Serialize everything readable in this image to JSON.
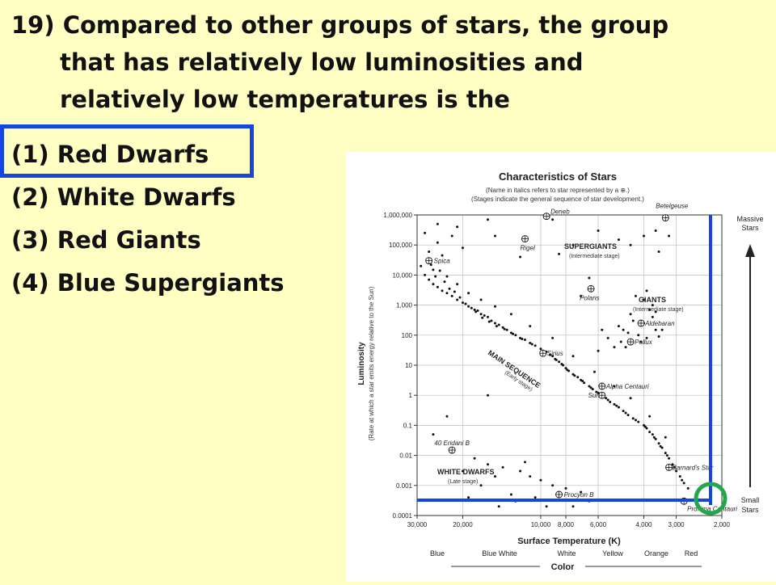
{
  "question": {
    "lines": [
      "19) Compared to other groups of stars, the group",
      "that has relatively low luminosities and",
      "relatively low temperatures is the"
    ]
  },
  "options": [
    "(1) Red Dwarfs",
    "(2) White Dwarfs",
    "(3) Red Giants",
    "(4) Blue Supergiants"
  ],
  "selected_option": 0,
  "colors": {
    "background": "#ffffc4",
    "answer_box": "#1646e0",
    "guide_lines": "#1646e0",
    "highlight_circle": "#22a84a"
  },
  "chart": {
    "title": "Characteristics of Stars",
    "subtitle_1": "(Name in italics refers to star represented by a ⊕.)",
    "subtitle_2": "(Stages indicate the general sequence of star development.)",
    "ylabel_main": "Luminosity",
    "ylabel_sub": "(Rate at which a star emits energy relative to the Sun)",
    "xlabel": "Surface Temperature (K)",
    "color_label": "Color",
    "color_bands": [
      "Blue",
      "Blue White",
      "White",
      "Yellow",
      "Orange",
      "Red"
    ],
    "massive_label": [
      "Massive",
      "Stars"
    ],
    "small_label": [
      "Small",
      "Stars"
    ],
    "regions": {
      "supergiants": "SUPERGIANTS",
      "supergiants_stage": "(Intermediate stage)",
      "giants": "GIANTS",
      "giants_stage": "(Intermediate stage)",
      "main_sequence": "MAIN SEQUENCE",
      "main_sequence_stage": "(Early stage)",
      "white_dwarfs": "WHITE DWARFS",
      "white_dwarfs_stage": "(Late stage)"
    }
  },
  "chart_data": {
    "type": "scatter",
    "title": "Characteristics of Stars",
    "xlabel": "Surface Temperature (K)",
    "ylabel": "Luminosity",
    "x_scale": "log",
    "y_scale": "log",
    "x_reversed": true,
    "xlim": [
      30000,
      2000
    ],
    "ylim": [
      0.0001,
      1000000
    ],
    "grid": true,
    "x_ticks": [
      {
        "value": 30000,
        "label": "30,000"
      },
      {
        "value": 20000,
        "label": "20,000"
      },
      {
        "value": 10000,
        "label": "10,000"
      },
      {
        "value": 8000,
        "label": "8,000"
      },
      {
        "value": 6000,
        "label": "6,000"
      },
      {
        "value": 4000,
        "label": "4,000"
      },
      {
        "value": 3000,
        "label": "3,000"
      },
      {
        "value": 2000,
        "label": "2,000"
      }
    ],
    "y_ticks": [
      {
        "value": 1000000,
        "label": "1,000,000"
      },
      {
        "value": 100000,
        "label": "100,000"
      },
      {
        "value": 10000,
        "label": "10,000"
      },
      {
        "value": 1000,
        "label": "1,000"
      },
      {
        "value": 100,
        "label": "100"
      },
      {
        "value": 10,
        "label": "10"
      },
      {
        "value": 1,
        "label": "1"
      },
      {
        "value": 0.1,
        "label": "0.1"
      },
      {
        "value": 0.01,
        "label": "0.01"
      },
      {
        "value": 0.001,
        "label": "0.001"
      },
      {
        "value": 0.0001,
        "label": "0.0001"
      }
    ],
    "named_stars": [
      {
        "name": "Deneb",
        "temp": 9500,
        "lum": 900000
      },
      {
        "name": "Betelgeuse",
        "temp": 3300,
        "lum": 800000
      },
      {
        "name": "Rigel",
        "temp": 11500,
        "lum": 160000
      },
      {
        "name": "Spica",
        "temp": 27000,
        "lum": 30000
      },
      {
        "name": "Polaris",
        "temp": 6400,
        "lum": 3500
      },
      {
        "name": "Aldebaran",
        "temp": 4100,
        "lum": 250
      },
      {
        "name": "Pollux",
        "temp": 4500,
        "lum": 60
      },
      {
        "name": "Sirius",
        "temp": 9800,
        "lum": 25
      },
      {
        "name": "Alpha Centauri",
        "temp": 5800,
        "lum": 2
      },
      {
        "name": "Sun",
        "temp": 5800,
        "lum": 1
      },
      {
        "name": "40 Eridani B",
        "temp": 22000,
        "lum": 0.015
      },
      {
        "name": "Barnard's Star",
        "temp": 3200,
        "lum": 0.004
      },
      {
        "name": "Procyon B",
        "temp": 8500,
        "lum": 0.0005
      },
      {
        "name": "Proxima Centauri",
        "temp": 2800,
        "lum": 0.0003
      }
    ],
    "field_stars": [
      [
        28000,
        250000
      ],
      [
        25000,
        120000
      ],
      [
        22000,
        200000
      ],
      [
        20000,
        80000
      ],
      [
        27000,
        60000
      ],
      [
        24000,
        45000
      ],
      [
        21000,
        400000
      ],
      [
        29000,
        20000
      ],
      [
        28000,
        10000
      ],
      [
        27000,
        7000
      ],
      [
        26000,
        5000
      ],
      [
        25000,
        4000
      ],
      [
        24000,
        3000
      ],
      [
        23000,
        2500
      ],
      [
        22000,
        2000
      ],
      [
        21000,
        1500
      ],
      [
        20000,
        1200
      ],
      [
        19000,
        900
      ],
      [
        18000,
        700
      ],
      [
        17500,
        650
      ],
      [
        17000,
        500
      ],
      [
        16500,
        450
      ],
      [
        16000,
        400
      ],
      [
        15500,
        300
      ],
      [
        15000,
        250
      ],
      [
        14500,
        220
      ],
      [
        14000,
        180
      ],
      [
        13500,
        150
      ],
      [
        13000,
        120
      ],
      [
        12500,
        100
      ],
      [
        12000,
        80
      ],
      [
        11500,
        70
      ],
      [
        11000,
        55
      ],
      [
        10500,
        45
      ],
      [
        10000,
        35
      ],
      [
        9500,
        28
      ],
      [
        9000,
        20
      ],
      [
        8800,
        16
      ],
      [
        8500,
        13
      ],
      [
        8200,
        10
      ],
      [
        8000,
        8
      ],
      [
        7800,
        6.5
      ],
      [
        7500,
        5
      ],
      [
        7200,
        4
      ],
      [
        7000,
        3.2
      ],
      [
        6800,
        2.6
      ],
      [
        6500,
        2
      ],
      [
        6300,
        1.6
      ],
      [
        6100,
        1.3
      ],
      [
        5900,
        1.1
      ],
      [
        5600,
        0.8
      ],
      [
        5400,
        0.6
      ],
      [
        5200,
        0.5
      ],
      [
        5000,
        0.4
      ],
      [
        4800,
        0.3
      ],
      [
        4600,
        0.22
      ],
      [
        4400,
        0.17
      ],
      [
        4200,
        0.13
      ],
      [
        4000,
        0.1
      ],
      [
        3900,
        0.08
      ],
      [
        3800,
        0.06
      ],
      [
        3700,
        0.05
      ],
      [
        3600,
        0.035
      ],
      [
        3500,
        0.025
      ],
      [
        3400,
        0.018
      ],
      [
        3300,
        0.012
      ],
      [
        3200,
        0.008
      ],
      [
        3100,
        0.005
      ],
      [
        3000,
        0.003
      ],
      [
        2900,
        0.002
      ],
      [
        2800,
        0.0012
      ],
      [
        2700,
        0.0008
      ],
      [
        26000,
        15000
      ],
      [
        25500,
        9000
      ],
      [
        23500,
        6000
      ],
      [
        22500,
        3500
      ],
      [
        21500,
        2800
      ],
      [
        20500,
        1800
      ],
      [
        19500,
        1100
      ],
      [
        18500,
        800
      ],
      [
        17800,
        600
      ],
      [
        16800,
        380
      ],
      [
        15800,
        280
      ],
      [
        14800,
        200
      ],
      [
        13800,
        160
      ],
      [
        12800,
        110
      ],
      [
        11800,
        75
      ],
      [
        10800,
        50
      ],
      [
        9800,
        30
      ],
      [
        9200,
        22
      ],
      [
        8700,
        15
      ],
      [
        8300,
        11
      ],
      [
        7900,
        7
      ],
      [
        7400,
        4.5
      ],
      [
        6900,
        3
      ],
      [
        6400,
        1.8
      ],
      [
        6000,
        1.2
      ],
      [
        5500,
        0.7
      ],
      [
        5100,
        0.45
      ],
      [
        4700,
        0.26
      ],
      [
        4300,
        0.15
      ],
      [
        3950,
        0.09
      ],
      [
        3650,
        0.04
      ],
      [
        3450,
        0.02
      ],
      [
        3250,
        0.01
      ],
      [
        3050,
        0.004
      ],
      [
        2850,
        0.0015
      ],
      [
        27500,
        30000
      ],
      [
        26500,
        22000
      ],
      [
        24500,
        14000
      ],
      [
        23000,
        9000
      ],
      [
        21000,
        5000
      ],
      [
        19000,
        2500
      ],
      [
        17000,
        1500
      ],
      [
        15000,
        900
      ],
      [
        13000,
        500
      ],
      [
        11000,
        200
      ],
      [
        9000,
        80
      ],
      [
        7500,
        20
      ],
      [
        6200,
        6
      ],
      [
        5200,
        2
      ],
      [
        4500,
        0.8
      ],
      [
        3800,
        0.2
      ],
      [
        3300,
        0.04
      ],
      [
        5000,
        200
      ],
      [
        4800,
        150
      ],
      [
        4600,
        120
      ],
      [
        4400,
        300
      ],
      [
        4200,
        100
      ],
      [
        4000,
        250
      ],
      [
        3900,
        80
      ],
      [
        3700,
        400
      ],
      [
        3600,
        150
      ],
      [
        4900,
        60
      ],
      [
        4500,
        500
      ],
      [
        4100,
        60
      ],
      [
        3800,
        700
      ],
      [
        3500,
        90
      ],
      [
        4300,
        2000
      ],
      [
        4000,
        1500
      ],
      [
        3900,
        3000
      ],
      [
        3700,
        1000
      ],
      [
        5200,
        40
      ],
      [
        4700,
        40
      ],
      [
        3600,
        600
      ],
      [
        3400,
        150
      ],
      [
        5500,
        80
      ],
      [
        6000,
        30
      ],
      [
        5800,
        150
      ],
      [
        6500,
        8000
      ],
      [
        7000,
        2000
      ],
      [
        7500,
        100000
      ],
      [
        8500,
        50000
      ],
      [
        12000,
        40000
      ],
      [
        15000,
        200000
      ],
      [
        6000,
        300000
      ],
      [
        5000,
        150000
      ],
      [
        4500,
        100000
      ],
      [
        4000,
        200000
      ],
      [
        3500,
        60000
      ],
      [
        3200,
        200000
      ],
      [
        3600,
        300000
      ],
      [
        9000,
        700000
      ],
      [
        16000,
        700000
      ],
      [
        25000,
        500000
      ],
      [
        18000,
        0.008
      ],
      [
        16000,
        0.005
      ],
      [
        14000,
        0.004
      ],
      [
        12000,
        0.003
      ],
      [
        11000,
        0.002
      ],
      [
        10000,
        0.0015
      ],
      [
        9000,
        0.001
      ],
      [
        8000,
        0.0008
      ],
      [
        7000,
        0.0006
      ],
      [
        13000,
        0.0005
      ],
      [
        15000,
        0.002
      ],
      [
        17000,
        0.001
      ],
      [
        20000,
        0.003
      ],
      [
        12500,
        0.0003
      ],
      [
        10500,
        0.0004
      ],
      [
        9500,
        0.0002
      ],
      [
        6500,
        0.0003
      ],
      [
        7500,
        0.0002
      ],
      [
        14500,
        0.0002
      ],
      [
        19000,
        0.0004
      ],
      [
        11500,
        0.006
      ],
      [
        23000,
        0.2
      ],
      [
        16000,
        1
      ],
      [
        26000,
        0.05
      ]
    ]
  }
}
